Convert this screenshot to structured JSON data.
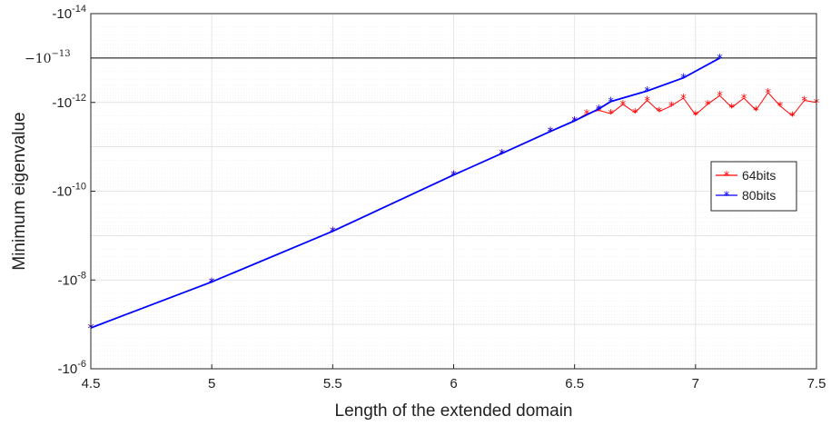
{
  "chart_data": {
    "type": "line",
    "xlabel": "Length of the extended domain",
    "ylabel": "Minimum eigenvalue",
    "xlim": [
      4.5,
      7.5
    ],
    "x_ticks": [
      "4.5",
      "5",
      "5.5",
      "6",
      "6.5",
      "7",
      "7.5"
    ],
    "y_scale": "log",
    "y_sign": "negative",
    "ylim_magnitude": [
      1e-14,
      1e-06
    ],
    "y_ticks": [
      {
        "value": 1e-14,
        "base": "-10",
        "exp": "-14"
      },
      {
        "value": 1e-12,
        "base": "-10",
        "exp": "-12"
      },
      {
        "value": 1e-10,
        "base": "-10",
        "exp": "-10"
      },
      {
        "value": 1e-08,
        "base": "-10",
        "exp": "-8"
      },
      {
        "value": 1e-06,
        "base": "-10",
        "exp": "-6"
      }
    ],
    "grid": true,
    "legend_position": "right",
    "reference_line": {
      "value": 1e-13,
      "base": "−10",
      "exp": "−13",
      "color": "#000000"
    },
    "series": [
      {
        "name": "64bits",
        "color": "#ff0000",
        "marker": "*",
        "x": [
          4.5,
          5.0,
          5.5,
          6.0,
          6.2,
          6.4,
          6.5,
          6.55,
          6.6,
          6.65,
          6.7,
          6.75,
          6.8,
          6.85,
          6.9,
          6.95,
          7.0,
          7.05,
          7.1,
          7.15,
          7.2,
          7.25,
          7.3,
          7.35,
          7.4,
          7.45,
          7.5
        ],
        "magnitude": [
          1.2e-07,
          1.1e-08,
          8e-10,
          4.3e-11,
          1.4e-11,
          4.5e-12,
          2.6e-12,
          1.8e-12,
          1.5e-12,
          1.8e-12,
          1.1e-12,
          1.7e-12,
          9e-13,
          1.6e-12,
          1.2e-12,
          8e-13,
          1.9e-12,
          1.1e-12,
          7e-13,
          1.3e-12,
          8e-13,
          1.5e-12,
          6e-13,
          1.2e-12,
          2e-12,
          9e-13,
          1e-12
        ]
      },
      {
        "name": "80bits",
        "color": "#0000ff",
        "marker": "*",
        "x": [
          4.5,
          5.0,
          5.5,
          6.0,
          6.2,
          6.4,
          6.5,
          6.6,
          6.65,
          6.8,
          6.95,
          7.1
        ],
        "magnitude": [
          1.2e-07,
          1.1e-08,
          8e-10,
          4.3e-11,
          1.4e-11,
          4.5e-12,
          2.6e-12,
          1.4e-12,
          9.5e-13,
          5.5e-13,
          2.8e-13,
          1e-13
        ]
      }
    ]
  }
}
